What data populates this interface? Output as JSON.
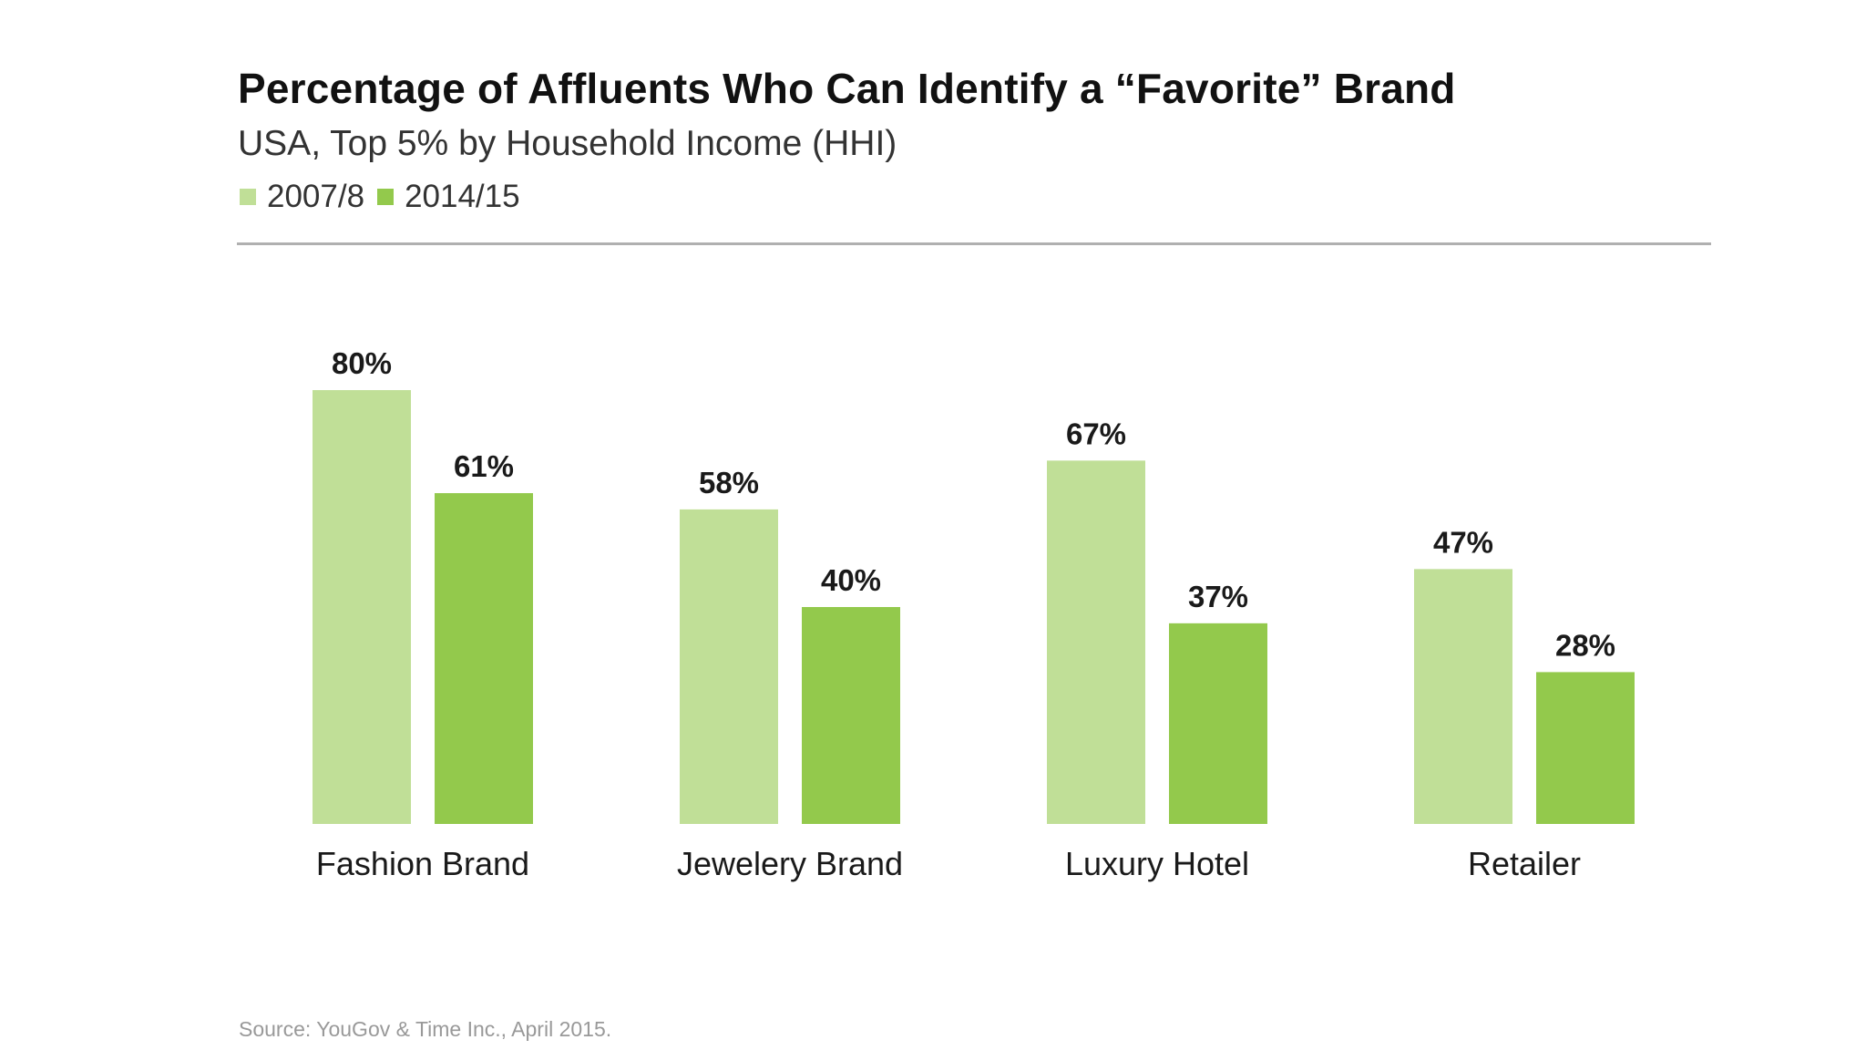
{
  "chart_data": {
    "type": "bar",
    "title": "Percentage of Affluents Who Can Identify a “Favorite” Brand",
    "subtitle": "USA, Top 5% by Household Income (HHI)",
    "categories": [
      "Fashion Brand",
      "Jewelery Brand",
      "Luxury Hotel",
      "Retailer"
    ],
    "series": [
      {
        "name": "2007/8",
        "values": [
          80,
          58,
          67,
          47
        ],
        "labels": [
          "80%",
          "58%",
          "67%",
          "47%"
        ],
        "color": "#c0df97"
      },
      {
        "name": "2014/15",
        "values": [
          61,
          40,
          37,
          28
        ],
        "labels": [
          "61%",
          "40%",
          "37%",
          "28%"
        ],
        "color": "#93c94c"
      }
    ],
    "ylim": [
      0,
      100
    ],
    "y_unit": "%",
    "grid": false,
    "legend_position": "top-left",
    "source": "Source: YouGov & Time Inc., April 2015."
  }
}
